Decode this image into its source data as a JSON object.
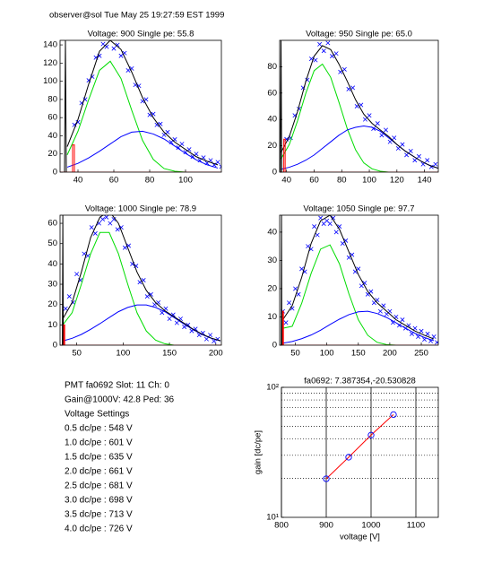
{
  "header": "observer@sol Tue May 25 19:27:59 EST 1999",
  "info_lines": [
    "PMT fa0692 Slot: 11 Ch: 0",
    "Gain@1000V: 42.8 Ped: 36",
    "Voltage Settings",
    "0.5 dc/pe : 548 V",
    "1.0 dc/pe : 601 V",
    "1.5 dc/pe : 635 V",
    "2.0 dc/pe : 661 V",
    "2.5 dc/pe : 681 V",
    "3.0 dc/pe : 698 V",
    "3.5 dc/pe : 713 V",
    "4.0 dc/pe : 726 V"
  ],
  "chart_data": [
    {
      "type": "scatter",
      "title": "Voltage: 900 Single pe: 55.8",
      "xlim": [
        30,
        120
      ],
      "ylim": [
        0,
        145
      ],
      "xticks": [
        40,
        60,
        80,
        100
      ],
      "yticks": [
        0,
        20,
        40,
        60,
        80,
        100,
        120,
        140
      ],
      "series": [
        {
          "color": "#0000ff",
          "marker": "x",
          "x": [
            38,
            40,
            42,
            44,
            46,
            48,
            50,
            52,
            54,
            56,
            58,
            60,
            62,
            64,
            66,
            68,
            70,
            72,
            74,
            76,
            78,
            80,
            82,
            84,
            86,
            88,
            90,
            92,
            94,
            96,
            98,
            100,
            102,
            104,
            106,
            108,
            110,
            112,
            114,
            116,
            118,
            120
          ],
          "values": [
            52,
            55,
            76,
            80,
            101,
            105,
            126,
            128,
            141,
            138,
            147,
            136,
            140,
            128,
            131,
            112,
            114,
            96,
            95,
            78,
            80,
            63,
            64,
            52,
            53,
            41,
            44,
            33,
            36,
            27,
            31,
            22,
            25,
            17,
            20,
            13,
            16,
            10,
            13,
            8,
            11,
            6
          ]
        },
        {
          "color": "#00dd00",
          "x": [
            34,
            40,
            46,
            52,
            58,
            64,
            70,
            76,
            82,
            88,
            94,
            100,
            106,
            112,
            118
          ],
          "values": [
            19,
            45,
            80,
            112,
            122,
            103,
            68,
            35,
            14,
            4,
            1,
            0,
            0,
            0,
            0
          ]
        },
        {
          "color": "#0000ff",
          "x": [
            34,
            40,
            46,
            52,
            58,
            64,
            70,
            76,
            82,
            88,
            94,
            100,
            106,
            112,
            118
          ],
          "values": [
            5.5,
            9.7,
            15.7,
            23,
            31,
            39,
            44,
            45,
            42,
            36.5,
            28.7,
            20.6,
            13.5,
            8.1,
            4.5
          ]
        },
        {
          "color": "#000000",
          "x": [
            34,
            40,
            46,
            52,
            58,
            64,
            70,
            76,
            82,
            88,
            94,
            100,
            106,
            112,
            118
          ],
          "values": [
            28,
            58,
            97,
            133,
            145,
            135,
            110,
            82,
            60,
            44,
            33,
            25,
            17,
            12,
            8
          ]
        },
        {
          "color": "#000000",
          "x": [
            32.5,
            33,
            33.5
          ],
          "values": [
            0,
            145,
            0
          ]
        },
        {
          "color": "#ff0000",
          "x": [
            30,
            37,
            37,
            38,
            38,
            120
          ],
          "values": [
            0,
            0,
            30,
            30,
            0,
            0
          ]
        }
      ]
    },
    {
      "type": "scatter",
      "title": "Voltage: 950 Single pe: 65.0",
      "xlim": [
        35,
        150
      ],
      "ylim": [
        0,
        100
      ],
      "xticks": [
        40,
        60,
        80,
        100,
        120,
        140
      ],
      "yticks": [
        0,
        20,
        40,
        60,
        80
      ],
      "series": [
        {
          "color": "#0000ff",
          "marker": "x",
          "x": [
            40,
            43,
            46,
            49,
            52,
            55,
            58,
            61,
            64,
            67,
            70,
            73,
            76,
            79,
            82,
            85,
            88,
            91,
            94,
            97,
            100,
            103,
            106,
            109,
            112,
            115,
            118,
            121,
            124,
            127,
            130,
            133,
            136,
            139,
            142,
            145,
            148
          ],
          "values": [
            25,
            26,
            43,
            48,
            64,
            70,
            86,
            85,
            97,
            92,
            98,
            88,
            90,
            76,
            78,
            63,
            64,
            50,
            51,
            40,
            43,
            33,
            37,
            28,
            32,
            23,
            26,
            18,
            21,
            13,
            16,
            9,
            12,
            6,
            9,
            4,
            6
          ]
        },
        {
          "color": "#00dd00",
          "x": [
            36,
            42,
            48,
            54,
            60,
            66,
            72,
            78,
            84,
            90,
            96,
            102,
            108,
            114,
            120,
            126,
            132,
            138,
            144,
            150
          ],
          "values": [
            10,
            21,
            39,
            60,
            77,
            82,
            72,
            53,
            33,
            17,
            7,
            2.5,
            0.7,
            0,
            0,
            0,
            0,
            0,
            0,
            0
          ]
        },
        {
          "color": "#0000ff",
          "x": [
            36,
            42,
            48,
            54,
            60,
            66,
            72,
            78,
            84,
            90,
            96,
            102,
            108,
            114,
            120,
            126,
            132,
            138,
            144,
            150
          ],
          "values": [
            2.2,
            3.7,
            6,
            9.1,
            13,
            18,
            23,
            28,
            32,
            34,
            35,
            34,
            31,
            26,
            21,
            16,
            12,
            8,
            5,
            3
          ]
        },
        {
          "color": "#000000",
          "x": [
            36,
            42,
            48,
            54,
            60,
            66,
            72,
            78,
            84,
            90,
            96,
            102,
            108,
            114,
            120,
            126,
            132,
            138,
            144,
            150
          ],
          "values": [
            15,
            27,
            46,
            69,
            88,
            96,
            93,
            82,
            69,
            55,
            44,
            37,
            32,
            27,
            21,
            16,
            12,
            8,
            5,
            3
          ]
        },
        {
          "color": "#000000",
          "x": [
            35.5,
            36,
            36.5
          ],
          "values": [
            0,
            100,
            0
          ]
        },
        {
          "color": "#ff0000",
          "x": [
            35,
            38,
            38,
            39,
            39,
            150
          ],
          "values": [
            0,
            0,
            25,
            25,
            0,
            0
          ]
        }
      ]
    },
    {
      "type": "scatter",
      "title": "Voltage: 1000 Single pe: 78.9",
      "xlim": [
        32,
        206
      ],
      "ylim": [
        0,
        64
      ],
      "xticks": [
        50,
        100,
        150,
        200
      ],
      "yticks": [
        0,
        10,
        20,
        30,
        40,
        50,
        60
      ],
      "series": [
        {
          "color": "#0000ff",
          "marker": "x",
          "x": [
            38,
            42,
            46,
            50,
            54,
            58,
            62,
            66,
            70,
            74,
            78,
            82,
            86,
            90,
            94,
            98,
            102,
            106,
            110,
            114,
            118,
            122,
            126,
            130,
            134,
            138,
            142,
            146,
            150,
            154,
            158,
            162,
            166,
            170,
            174,
            178,
            182,
            186,
            190,
            194,
            198,
            202
          ],
          "values": [
            18,
            24,
            21,
            35,
            32,
            45,
            44,
            58,
            55,
            60,
            62,
            63,
            60,
            62,
            57,
            58,
            48,
            49,
            40,
            39,
            31,
            32,
            24,
            25,
            20,
            21,
            16,
            18,
            13,
            15,
            11,
            13,
            9,
            10,
            7,
            8,
            5,
            6,
            3,
            5,
            2,
            3
          ]
        },
        {
          "color": "#00dd00",
          "x": [
            35,
            45,
            55,
            65,
            75,
            85,
            95,
            105,
            115,
            125,
            135,
            145,
            155,
            165,
            175,
            185,
            195,
            205
          ],
          "values": [
            10,
            16,
            30,
            45,
            55.5,
            55.5,
            45,
            30,
            16,
            7,
            2.5,
            0.7,
            0,
            0,
            0,
            0,
            0,
            0
          ]
        },
        {
          "color": "#0000ff",
          "x": [
            35,
            45,
            55,
            65,
            75,
            85,
            95,
            105,
            115,
            125,
            135,
            145,
            155,
            165,
            175,
            185,
            195,
            205
          ],
          "values": [
            2.1,
            3.4,
            5.3,
            7.8,
            10.6,
            13.6,
            16.5,
            18.6,
            19.8,
            19.8,
            18.6,
            16.5,
            13.6,
            10.6,
            7.8,
            5.3,
            3.4,
            2.1
          ]
        },
        {
          "color": "#000000",
          "x": [
            35,
            45,
            55,
            65,
            75,
            85,
            95,
            105,
            115,
            125,
            135,
            145,
            155,
            165,
            175,
            185,
            195,
            205
          ],
          "values": [
            13,
            21,
            36,
            53,
            63,
            66,
            60,
            48,
            36,
            27,
            21,
            17,
            14,
            11,
            8,
            5.5,
            3.5,
            2.2
          ]
        },
        {
          "color": "#000000",
          "x": [
            34.5,
            35,
            35.5
          ],
          "values": [
            0,
            64,
            0
          ]
        },
        {
          "color": "#ff0000",
          "x": [
            32,
            36,
            36,
            37,
            37,
            206
          ],
          "values": [
            0,
            0,
            10,
            10,
            0,
            0
          ]
        }
      ]
    },
    {
      "type": "scatter",
      "title": "Voltage: 1050 Single pe: 97.7",
      "xlim": [
        25,
        277
      ],
      "ylim": [
        0,
        46
      ],
      "xticks": [
        50,
        100,
        150,
        200,
        250
      ],
      "yticks": [
        0,
        10,
        20,
        30,
        40
      ],
      "series": [
        {
          "color": "#0000ff",
          "marker": "x",
          "x": [
            30,
            35,
            40,
            45,
            50,
            55,
            60,
            65,
            70,
            75,
            80,
            85,
            90,
            95,
            100,
            105,
            110,
            115,
            120,
            125,
            130,
            135,
            140,
            145,
            150,
            155,
            160,
            165,
            170,
            175,
            180,
            185,
            190,
            195,
            200,
            205,
            210,
            215,
            220,
            225,
            230,
            235,
            240,
            245,
            250,
            255,
            260,
            265,
            270,
            275
          ],
          "values": [
            12,
            8,
            15,
            13,
            20,
            18,
            27,
            26,
            35,
            34,
            42,
            39,
            45,
            43,
            44,
            43,
            45,
            40,
            42,
            36,
            37,
            31,
            32,
            26,
            27,
            21,
            22,
            18,
            19,
            15,
            16,
            12,
            14,
            11,
            12,
            8,
            10,
            7,
            9,
            6,
            7,
            4,
            6,
            3,
            5,
            2,
            4,
            1.5,
            3,
            1
          ]
        },
        {
          "color": "#00dd00",
          "x": [
            30,
            45,
            60,
            75,
            90,
            105,
            120,
            135,
            150,
            165,
            180,
            195,
            210,
            225,
            240,
            255,
            270
          ],
          "values": [
            6,
            6.7,
            14.8,
            25.4,
            34,
            35.5,
            28.8,
            18.2,
            9,
            3.5,
            1,
            0.2,
            0,
            0,
            0,
            0,
            0
          ]
        },
        {
          "color": "#0000ff",
          "x": [
            30,
            45,
            60,
            75,
            90,
            105,
            120,
            135,
            150,
            165,
            180,
            195,
            210,
            225,
            240,
            255,
            270
          ],
          "values": [
            0.7,
            1.3,
            2.3,
            3.6,
            5.3,
            7.3,
            9.2,
            10.8,
            11.8,
            12,
            11.2,
            9.8,
            7.9,
            6,
            4.2,
            2.7,
            1.6
          ]
        },
        {
          "color": "#000000",
          "x": [
            30,
            45,
            60,
            75,
            90,
            105,
            120,
            135,
            150,
            165,
            180,
            195,
            210,
            225,
            240,
            255,
            270
          ],
          "values": [
            9,
            14,
            24,
            36,
            44,
            46,
            41,
            33,
            25,
            19,
            15,
            12,
            9,
            7,
            5,
            3.5,
            2.2
          ]
        },
        {
          "color": "#000000",
          "x": [
            27.5,
            28,
            28.5
          ],
          "values": [
            0,
            46,
            0
          ]
        },
        {
          "color": "#ff0000",
          "x": [
            25,
            30,
            30,
            31,
            31,
            277
          ],
          "values": [
            0,
            0,
            12,
            12,
            0,
            0
          ]
        }
      ]
    },
    {
      "type": "line",
      "title": "fa0692: 7.387354,-20.530828",
      "xlabel": "voltage [V]",
      "ylabel": "gain [dc/pe]",
      "xlim": [
        800,
        1150
      ],
      "ylim": [
        10,
        100
      ],
      "yscale": "log",
      "grid": true,
      "xticks": [
        800,
        900,
        1000,
        1100
      ],
      "yticks": [
        {
          "value": 10,
          "label": "10¹"
        },
        {
          "value": 100,
          "label": "10²"
        }
      ],
      "yminor": [
        20,
        30,
        40,
        50,
        60,
        70,
        80,
        90
      ],
      "series": [
        {
          "color": "#ff0000",
          "marker": "o",
          "marker_color": "#0000ff",
          "x": [
            900,
            950,
            1000,
            1050
          ],
          "values": [
            19.8,
            29.0,
            42.9,
            61.7
          ]
        }
      ]
    }
  ]
}
